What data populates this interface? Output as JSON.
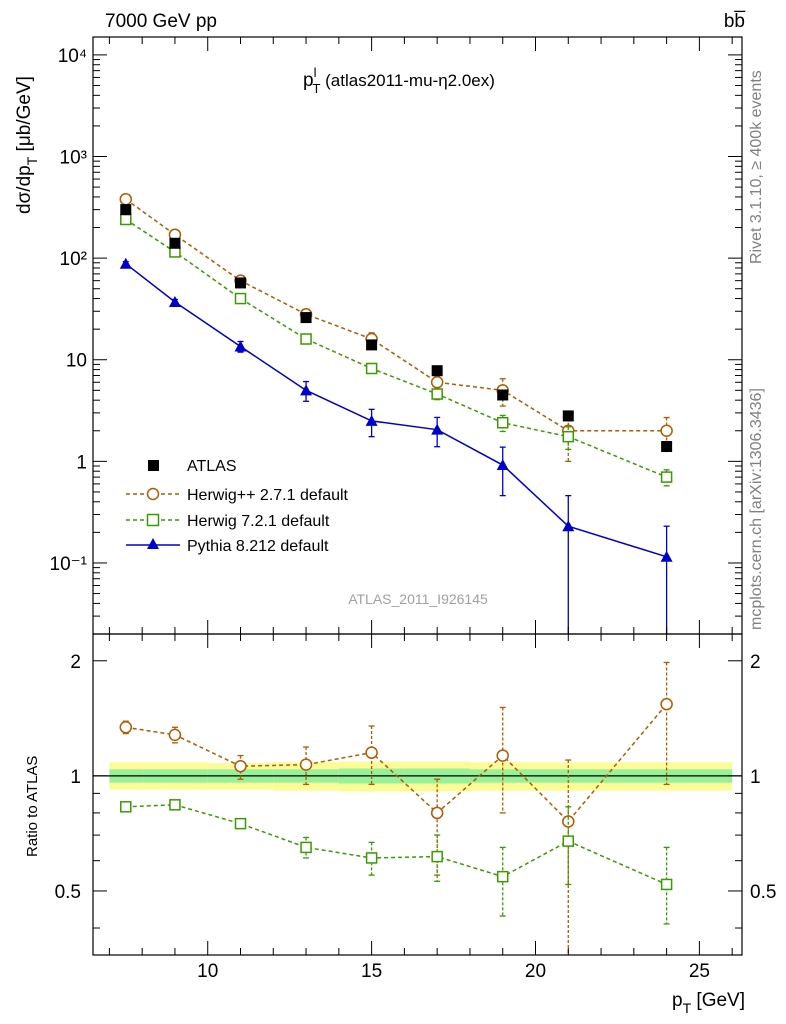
{
  "header": {
    "left_label": "7000 GeV pp",
    "right_label": "bb̅"
  },
  "side_labels": {
    "rivet": "Rivet 3.1.10, ≥ 400k events",
    "mcplots": "mcplots.cern.ch [arXiv:1306.3436]"
  },
  "watermark": "ATLAS_2011_I926145",
  "chart_data": [
    {
      "type": "line",
      "panel": "main",
      "title_main": "p",
      "title_sup": "l",
      "title_sub": "T",
      "title_rest": " (atlas2011-mu-η2.0ex)",
      "ylabel": "dσ/dp_T [μb/GeV]",
      "xlim": [
        6.5,
        26.3
      ],
      "ylim": [
        0.02,
        15000
      ],
      "yscale": "log",
      "ytick_labels": [
        "10⁻¹",
        "1",
        "10",
        "10²",
        "10³",
        "10⁴"
      ],
      "ytick_values": [
        0.1,
        1,
        10,
        100,
        1000,
        10000
      ],
      "series": [
        {
          "name": "ATLAS",
          "color": "#000000",
          "marker": "square-filled",
          "line": "none",
          "x": [
            7.5,
            9,
            11,
            13,
            15,
            17,
            19,
            21,
            24
          ],
          "y": [
            300,
            140,
            57,
            26,
            14,
            7.8,
            4.5,
            2.8,
            1.4
          ],
          "yerr": [
            0.1,
            0.1,
            0.1,
            0.1,
            0.1,
            0.1,
            0.12,
            0.12,
            0.12
          ]
        },
        {
          "name": "Herwig++ 2.7.1 default",
          "color": "#b35900",
          "marker": "circle-open",
          "line": "dashed",
          "x": [
            7.5,
            9,
            11,
            13,
            15,
            17,
            19,
            21,
            24
          ],
          "y": [
            380,
            170,
            60,
            28,
            16,
            6,
            5,
            2,
            2
          ],
          "yerr": [
            0.05,
            0.06,
            0.08,
            0.1,
            0.15,
            0.15,
            0.3,
            0.5,
            0.35
          ]
        },
        {
          "name": "Herwig 7.2.1 default",
          "color": "#3a9a00",
          "marker": "square-open",
          "line": "dashed",
          "x": [
            7.5,
            9,
            11,
            13,
            15,
            17,
            19,
            21,
            24
          ],
          "y": [
            240,
            115,
            40,
            16,
            8.2,
            4.6,
            2.4,
            1.75,
            0.7
          ],
          "yerr": [
            0.04,
            0.05,
            0.06,
            0.06,
            0.08,
            0.12,
            0.18,
            0.25,
            0.18
          ]
        },
        {
          "name": "Pythia 8.212 default",
          "color": "#0000cc",
          "marker": "triangle-filled",
          "line": "solid",
          "x": [
            7.5,
            9,
            11,
            13,
            15,
            17,
            19,
            21,
            24
          ],
          "y": [
            88,
            37,
            13.5,
            5,
            2.5,
            2.05,
            0.92,
            0.23,
            0.115
          ],
          "yerr_low": [
            0.05,
            0.06,
            0.12,
            0.22,
            0.3,
            0.32,
            0.5,
            0.99,
            0.99
          ],
          "yerr_high": [
            0.05,
            0.06,
            0.12,
            0.22,
            0.3,
            0.32,
            0.5,
            1.0,
            1.0
          ]
        }
      ]
    },
    {
      "type": "line",
      "panel": "ratio",
      "ylabel": "Ratio to ATLAS",
      "xlabel": "p_T [GeV]",
      "xlim": [
        6.5,
        26.3
      ],
      "ylim": [
        0.34,
        2.35
      ],
      "xticks": [
        10,
        15,
        20,
        25
      ],
      "xtick_labels": [
        "10",
        "15",
        "20",
        "25"
      ],
      "yticks": [
        0.5,
        1,
        2
      ],
      "ytick_labels": [
        "0.5",
        "1",
        "2"
      ],
      "bands": {
        "bin_edges": [
          7,
          8,
          10,
          12,
          14,
          16,
          18,
          20,
          22,
          26
        ],
        "inner_low": [
          0.96,
          0.96,
          0.96,
          0.96,
          0.955,
          0.955,
          0.96,
          0.96,
          0.96
        ],
        "inner_high": [
          1.04,
          1.04,
          1.04,
          1.04,
          1.045,
          1.045,
          1.04,
          1.04,
          1.04
        ],
        "outer_low": [
          0.92,
          0.92,
          0.92,
          0.915,
          0.91,
          0.91,
          0.915,
          0.915,
          0.915
        ],
        "outer_high": [
          1.085,
          1.085,
          1.08,
          1.085,
          1.09,
          1.09,
          1.085,
          1.085,
          1.085
        ],
        "inner_color": "#98f098",
        "outer_color": "#fbfb98"
      },
      "series": [
        {
          "name": "Herwig++ 2.7.1 default",
          "color": "#b35900",
          "marker": "circle-open",
          "x": [
            7.5,
            9,
            11,
            13,
            15,
            17,
            19,
            21,
            24
          ],
          "y": [
            1.34,
            1.28,
            1.06,
            1.07,
            1.15,
            0.8,
            1.13,
            0.76,
            1.54
          ],
          "ylo": [
            1.29,
            1.22,
            0.98,
            0.95,
            0.95,
            0.55,
            0.8,
            0.33,
            0.95
          ],
          "yhi": [
            1.39,
            1.34,
            1.13,
            1.19,
            1.35,
            0.98,
            1.51,
            1.1,
            1.98
          ]
        },
        {
          "name": "Herwig 7.2.1 default",
          "color": "#3a9a00",
          "marker": "square-open",
          "x": [
            7.5,
            9,
            11,
            13,
            15,
            17,
            19,
            21,
            24
          ],
          "y": [
            0.83,
            0.84,
            0.75,
            0.65,
            0.61,
            0.615,
            0.545,
            0.675,
            0.52
          ],
          "ylo": [
            0.82,
            0.83,
            0.73,
            0.61,
            0.55,
            0.53,
            0.43,
            0.52,
            0.41
          ],
          "yhi": [
            0.84,
            0.85,
            0.77,
            0.69,
            0.67,
            0.7,
            0.65,
            0.83,
            0.65
          ]
        }
      ]
    }
  ]
}
